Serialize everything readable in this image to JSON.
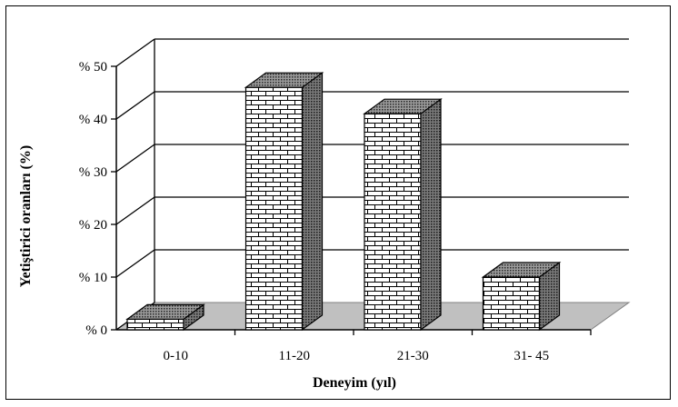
{
  "chart_data": {
    "type": "bar",
    "categories": [
      "0-10",
      "11-20",
      "21-30",
      "31- 45"
    ],
    "values": [
      2,
      46,
      41,
      10
    ],
    "y_tick_labels": [
      "% 0",
      "% 10",
      "% 20",
      "% 30",
      "% 40",
      "% 50"
    ],
    "ylim": [
      0,
      50
    ],
    "xlabel": "Deneyim (yıl)",
    "ylabel": "Yetiştirici oranları (%)",
    "grid": true,
    "style": "3d-bars-brick-pattern",
    "colors": {
      "bar_front": "#ffffff",
      "bar_side": "#7a7a7a",
      "floor": "#c0c0c0",
      "lines": "#000000"
    }
  }
}
